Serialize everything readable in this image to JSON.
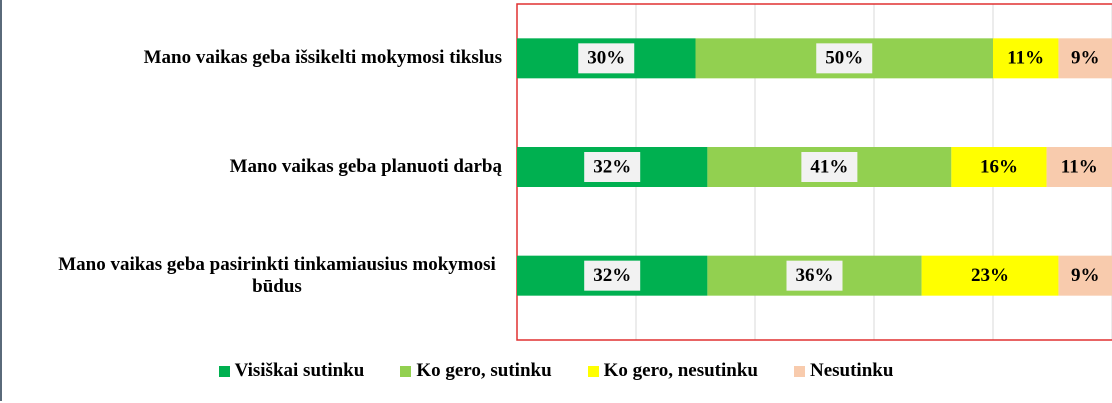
{
  "chart_data": {
    "type": "stacked_bar_horizontal",
    "categories": [
      "Mano vaikas geba išsikelti mokymosi tikslus",
      "Mano vaikas geba planuoti darbą",
      "Mano vaikas geba pasirinkti tinkamiausius mokymosi būdus"
    ],
    "series": [
      {
        "name": "Visiškai sutinku",
        "color": "#00b050",
        "values": [
          30,
          32,
          32
        ],
        "value_labels": [
          "30%",
          "32%",
          "32%"
        ]
      },
      {
        "name": "Ko gero, sutinku",
        "color": "#92d050",
        "values": [
          50,
          41,
          36
        ],
        "value_labels": [
          "50%",
          "41%",
          "36%"
        ]
      },
      {
        "name": "Ko gero, nesutinku",
        "color": "#ffff00",
        "values": [
          11,
          16,
          23
        ],
        "value_labels": [
          "11%",
          "16%",
          "23%"
        ]
      },
      {
        "name": "Nesutinku",
        "color": "#f8cbad",
        "values": [
          9,
          11,
          9
        ],
        "value_labels": [
          "9%",
          "11%",
          "9%"
        ]
      }
    ],
    "xlim": [
      0,
      100
    ],
    "xticks": [
      0,
      20,
      40,
      60,
      80,
      100
    ],
    "grid": true,
    "legend": "bottom"
  }
}
